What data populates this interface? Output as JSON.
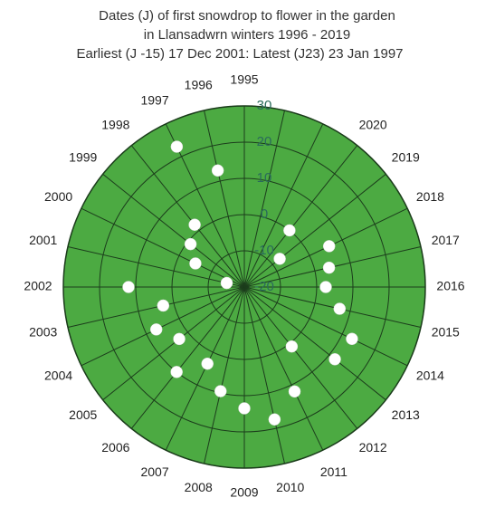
{
  "chart_data": {
    "type": "polar",
    "title": "Dates (J) of first snowdrop to flower in the garden",
    "subtitle": "in Llansadwrn winters 1996 - 2019",
    "annotation": "Earliest (J -15) 17 Dec 2001: Latest  (J23)  23 Jan 1997",
    "categories": [
      "1995",
      "1996",
      "1997",
      "1998",
      "1999",
      "2000",
      "2001",
      "2002",
      "2003",
      "2004",
      "2005",
      "2006",
      "2007",
      "2008",
      "2009",
      "2010",
      "2011",
      "2012",
      "2013",
      "2014",
      "2015",
      "2016",
      "2017",
      "2018",
      "2019",
      "2020",
      null,
      null
    ],
    "values": [
      null,
      13,
      23,
      2,
      -1,
      -5,
      -15,
      12,
      3,
      7,
      3,
      10,
      3.5,
      9.5,
      13.5,
      17.5,
      12,
      1,
      12,
      13,
      7,
      2.5,
      4,
      6,
      -7.5,
      0,
      null,
      null
    ],
    "rlim": [
      -20,
      30
    ],
    "rticks": [
      -20,
      -10,
      0,
      10,
      20,
      30
    ],
    "fill_color": "#4caa42",
    "grid_color": "#1c3d1c",
    "marker_color": "#ffffff",
    "direction": "counterclockwise"
  }
}
